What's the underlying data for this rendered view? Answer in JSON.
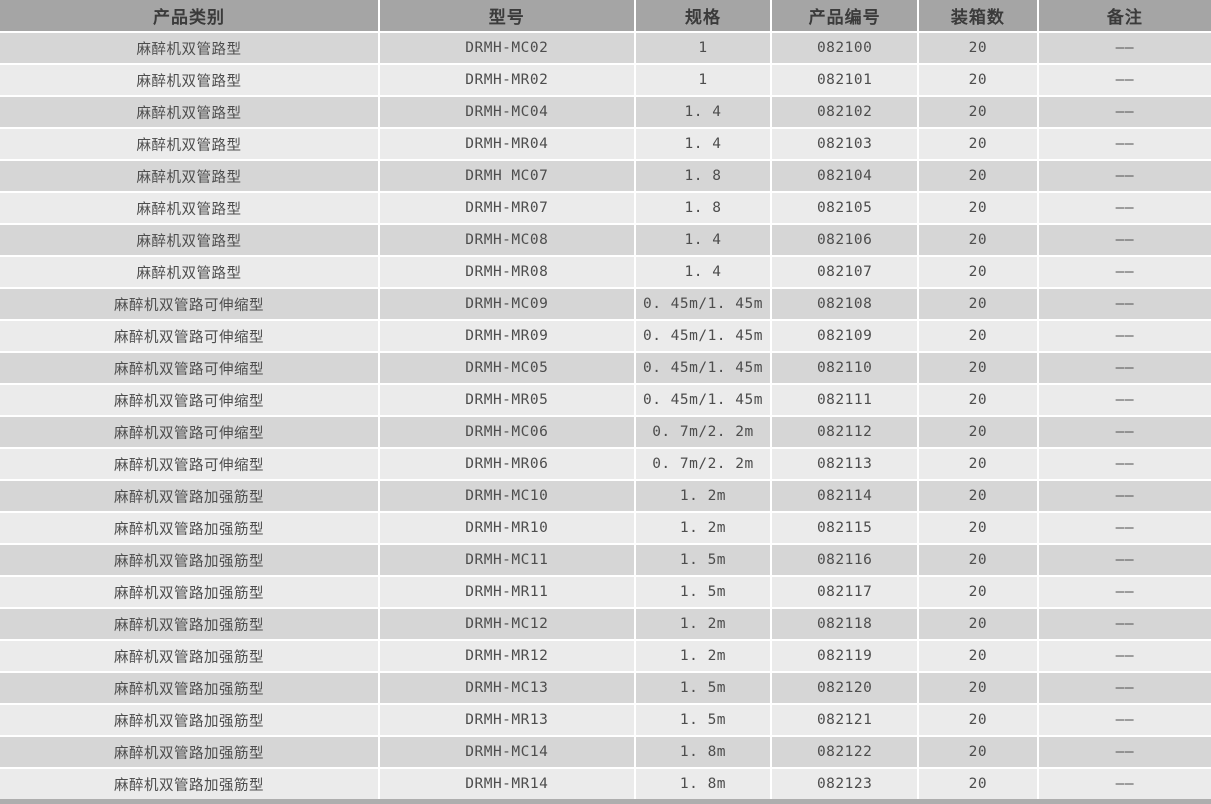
{
  "table": {
    "columns": [
      {
        "key": "category",
        "label": "产品类别"
      },
      {
        "key": "model",
        "label": "型号"
      },
      {
        "key": "spec",
        "label": "规格"
      },
      {
        "key": "product_code",
        "label": "产品编号"
      },
      {
        "key": "pack_qty",
        "label": "装箱数"
      },
      {
        "key": "remark",
        "label": "备注"
      }
    ],
    "rows": [
      [
        "麻醉机双管路型",
        "DRMH-MC02",
        "1",
        "082100",
        "20",
        "——"
      ],
      [
        "麻醉机双管路型",
        "DRMH-MR02",
        "1",
        "082101",
        "20",
        "——"
      ],
      [
        "麻醉机双管路型",
        "DRMH-MC04",
        "1. 4",
        "082102",
        "20",
        "——"
      ],
      [
        "麻醉机双管路型",
        "DRMH-MR04",
        "1. 4",
        "082103",
        "20",
        "——"
      ],
      [
        "麻醉机双管路型",
        "DRMH MC07",
        "1. 8",
        "082104",
        "20",
        "——"
      ],
      [
        "麻醉机双管路型",
        "DRMH-MR07",
        "1. 8",
        "082105",
        "20",
        "——"
      ],
      [
        "麻醉机双管路型",
        "DRMH-MC08",
        "1. 4",
        "082106",
        "20",
        "——"
      ],
      [
        "麻醉机双管路型",
        "DRMH-MR08",
        "1. 4",
        "082107",
        "20",
        "——"
      ],
      [
        "麻醉机双管路可伸缩型",
        "DRMH-MC09",
        "0. 45m/1. 45m",
        "082108",
        "20",
        "——"
      ],
      [
        "麻醉机双管路可伸缩型",
        "DRMH-MR09",
        "0. 45m/1. 45m",
        "082109",
        "20",
        "——"
      ],
      [
        "麻醉机双管路可伸缩型",
        "DRMH-MC05",
        "0. 45m/1. 45m",
        "082110",
        "20",
        "——"
      ],
      [
        "麻醉机双管路可伸缩型",
        "DRMH-MR05",
        "0. 45m/1. 45m",
        "082111",
        "20",
        "——"
      ],
      [
        "麻醉机双管路可伸缩型",
        "DRMH-MC06",
        "0. 7m/2. 2m",
        "082112",
        "20",
        "——"
      ],
      [
        "麻醉机双管路可伸缩型",
        "DRMH-MR06",
        "0. 7m/2. 2m",
        "082113",
        "20",
        "——"
      ],
      [
        "麻醉机双管路加强筋型",
        "DRMH-MC10",
        "1. 2m",
        "082114",
        "20",
        "——"
      ],
      [
        "麻醉机双管路加强筋型",
        "DRMH-MR10",
        "1. 2m",
        "082115",
        "20",
        "——"
      ],
      [
        "麻醉机双管路加强筋型",
        "DRMH-MC11",
        "1. 5m",
        "082116",
        "20",
        "——"
      ],
      [
        "麻醉机双管路加强筋型",
        "DRMH-MR11",
        "1. 5m",
        "082117",
        "20",
        "——"
      ],
      [
        "麻醉机双管路加强筋型",
        "DRMH-MC12",
        "1. 2m",
        "082118",
        "20",
        "——"
      ],
      [
        "麻醉机双管路加强筋型",
        "DRMH-MR12",
        "1. 2m",
        "082119",
        "20",
        "——"
      ],
      [
        "麻醉机双管路加强筋型",
        "DRMH-MC13",
        "1. 5m",
        "082120",
        "20",
        "——"
      ],
      [
        "麻醉机双管路加强筋型",
        "DRMH-MR13",
        "1. 5m",
        "082121",
        "20",
        "——"
      ],
      [
        "麻醉机双管路加强筋型",
        "DRMH-MC14",
        "1. 8m",
        "082122",
        "20",
        "——"
      ],
      [
        "麻醉机双管路加强筋型",
        "DRMH-MR14",
        "1. 8m",
        "082123",
        "20",
        "——"
      ]
    ]
  },
  "colors": {
    "header_bg": "#a5a5a5",
    "header_text": "#3b3b3b",
    "row_dark": "#d6d6d6",
    "row_light": "#ebebeb",
    "body_text": "#4d4d4d",
    "separator": "#ffffff",
    "bottom_strip": "#aeaeae"
  }
}
